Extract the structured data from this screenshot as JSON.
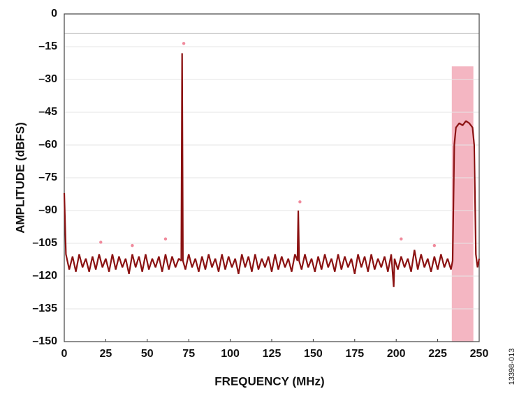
{
  "chart_data": {
    "type": "line",
    "y_label": "AMPLITUDE (dBFS)",
    "x_label": "FREQUENCY (MHz)",
    "note": "13398-013",
    "xlim": [
      0,
      250
    ],
    "ylim": [
      -150,
      0
    ],
    "xticks": [
      0,
      25,
      50,
      75,
      100,
      125,
      150,
      175,
      200,
      225,
      250
    ],
    "yticks": [
      0,
      {
        "value": -15,
        "label": "–15"
      },
      {
        "value": -30,
        "label": "–30"
      },
      {
        "value": -45,
        "label": "–45"
      },
      {
        "value": -60,
        "label": "–60"
      },
      {
        "value": -75,
        "label": "–75"
      },
      {
        "value": -90,
        "label": "–90"
      },
      {
        "value": -105,
        "label": "–105"
      },
      {
        "value": -120,
        "label": "–120"
      },
      {
        "value": -135,
        "label": "–135"
      },
      {
        "value": -150,
        "label": "–150"
      }
    ],
    "grid": true,
    "reference_line": {
      "value": -9,
      "color": "#c8c8c8"
    },
    "shaded_region": {
      "xlim": [
        233.5,
        246.5
      ],
      "ylim": [
        -150,
        -24
      ],
      "color": "#f4b6c2"
    },
    "series": [
      {
        "color": "#8b1212",
        "x": [
          0,
          1,
          3,
          5,
          7,
          9,
          11,
          13,
          15,
          17,
          19,
          21,
          23,
          25,
          27,
          29,
          31,
          33,
          35,
          37,
          39,
          41,
          43,
          45,
          47,
          49,
          51,
          53,
          55,
          57,
          59,
          61,
          63,
          65,
          67,
          69,
          70.5,
          71,
          71.5,
          73,
          75,
          77,
          79,
          81,
          83,
          85,
          87,
          89,
          91,
          93,
          95,
          97,
          99,
          101,
          103,
          105,
          107,
          109,
          111,
          113,
          115,
          117,
          119,
          121,
          123,
          125,
          127,
          129,
          131,
          133,
          135,
          137,
          139,
          140.5,
          141,
          141.5,
          143,
          145,
          147,
          149,
          151,
          153,
          155,
          157,
          159,
          161,
          163,
          165,
          167,
          169,
          171,
          173,
          175,
          177,
          179,
          181,
          183,
          185,
          187,
          189,
          191,
          193,
          195,
          197,
          198.5,
          199,
          201,
          203,
          205,
          207,
          209,
          211,
          213,
          215,
          217,
          219,
          221,
          223,
          225,
          227,
          229,
          231,
          233,
          234,
          235,
          236,
          238,
          240,
          242,
          244,
          246,
          247,
          248,
          249,
          250
        ],
        "values": [
          -82,
          -110,
          -117,
          -111,
          -118,
          -110,
          -116,
          -112,
          -118,
          -111,
          -117,
          -110,
          -116,
          -112,
          -118,
          -110,
          -117,
          -111,
          -116,
          -112,
          -119,
          -110,
          -116,
          -111,
          -118,
          -110,
          -117,
          -112,
          -116,
          -111,
          -118,
          -110,
          -117,
          -111,
          -116,
          -112,
          -113,
          -18,
          -113,
          -117,
          -110,
          -116,
          -112,
          -118,
          -111,
          -117,
          -110,
          -116,
          -112,
          -118,
          -110,
          -117,
          -111,
          -116,
          -112,
          -119,
          -110,
          -116,
          -111,
          -118,
          -110,
          -117,
          -112,
          -116,
          -111,
          -118,
          -110,
          -117,
          -111,
          -116,
          -112,
          -118,
          -110,
          -113,
          -90,
          -113,
          -117,
          -110,
          -116,
          -112,
          -118,
          -111,
          -117,
          -110,
          -116,
          -112,
          -118,
          -110,
          -117,
          -111,
          -116,
          -112,
          -119,
          -110,
          -116,
          -111,
          -118,
          -110,
          -117,
          -112,
          -116,
          -111,
          -118,
          -110,
          -125,
          -112,
          -117,
          -111,
          -116,
          -112,
          -118,
          -108,
          -117,
          -110,
          -116,
          -112,
          -118,
          -111,
          -117,
          -110,
          -116,
          -112,
          -117,
          -113,
          -60,
          -52,
          -50,
          -51,
          -49,
          -50,
          -52,
          -60,
          -110,
          -116,
          -112
        ]
      }
    ],
    "harmonic_markers": {
      "color": "#f08a9c",
      "x": [
        72,
        22,
        41,
        61,
        142,
        203,
        223
      ],
      "values": [
        -13.5,
        -104.5,
        -106,
        -103,
        -86,
        -103,
        -106
      ]
    }
  }
}
